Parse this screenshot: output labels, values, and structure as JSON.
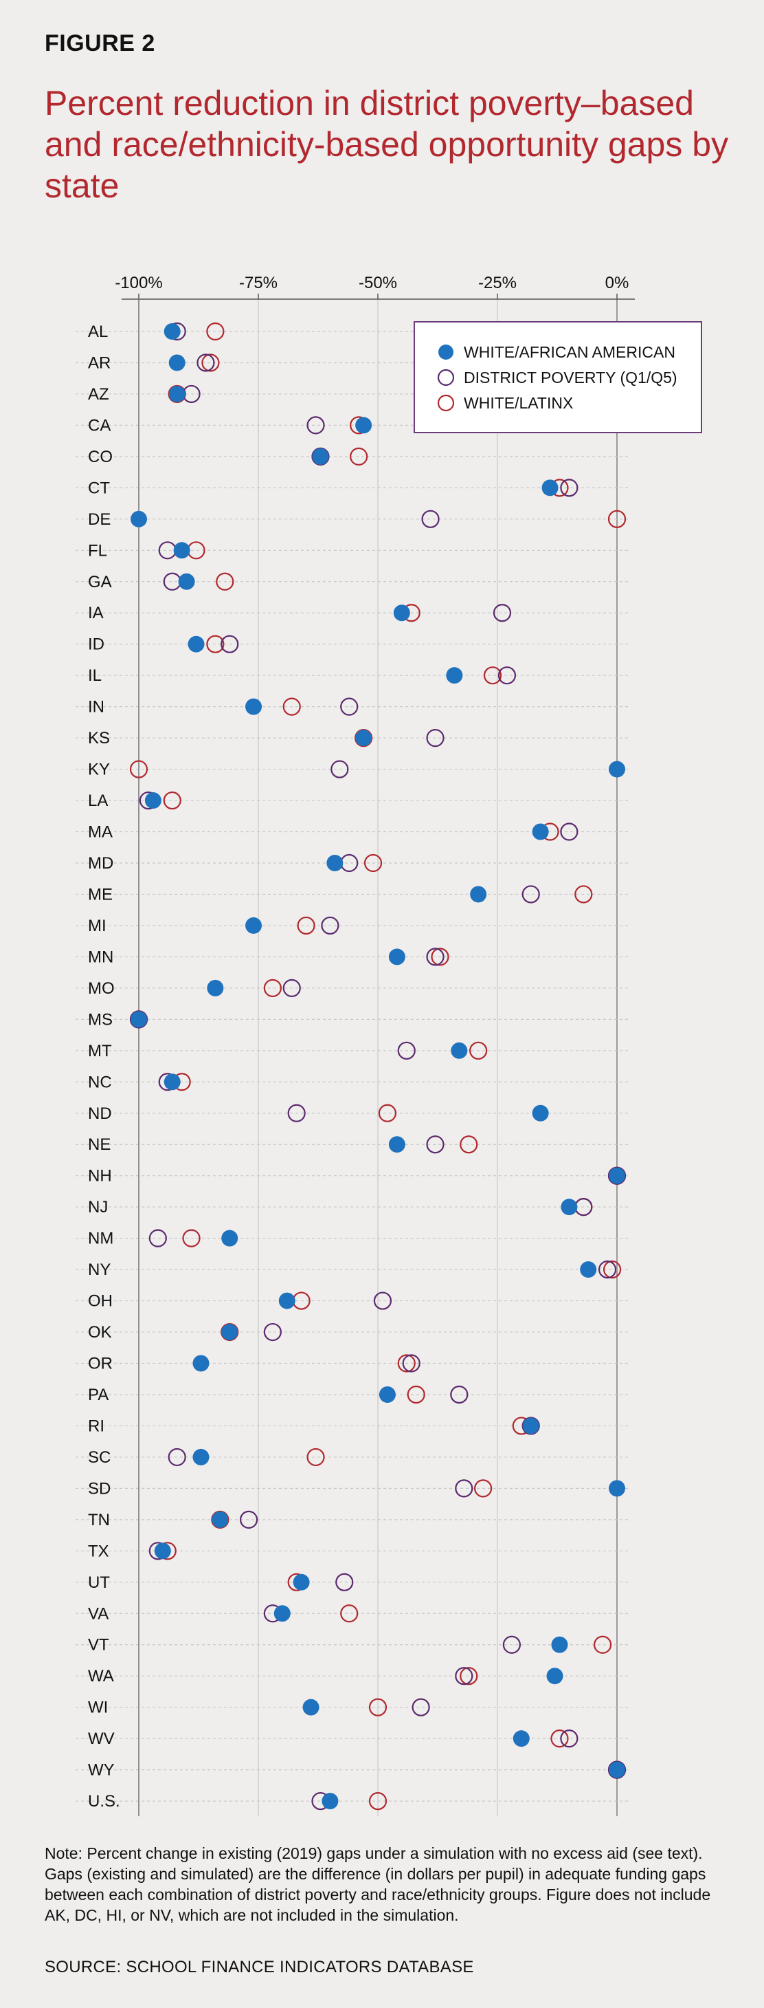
{
  "figure_label": "FIGURE 2",
  "title": "Percent reduction in district poverty–based and race/ethnicity-based opportunity gaps by state",
  "note": "Note: Percent change in existing (2019) gaps under a simulation with no excess aid (see text). Gaps (existing and simulated) are the difference (in dollars per pupil) in adequate funding gaps between each combination of district poverty and race/ethnicity groups. Figure does not include AK, DC, HI, or NV, which are not included in the simulation.",
  "source": "SOURCE: SCHOOL FINANCE INDICATORS DATABASE",
  "colors": {
    "african_american": "#1f72bd",
    "poverty": "#5b2a6e",
    "latinx": "#b2282e",
    "title": "#b2282e",
    "background": "#efeeed"
  },
  "chart_data": {
    "type": "scatter",
    "title": "Percent reduction in district poverty–based and race/ethnicity-based opportunity gaps by state",
    "xlabel": "",
    "ylabel": "",
    "xlim": [
      -100,
      0
    ],
    "x_ticks": [
      -100,
      -75,
      -50,
      -25,
      0
    ],
    "x_tick_labels": [
      "-100%",
      "-75%",
      "-50%",
      "-25%",
      "0%"
    ],
    "x_axis_position": "top",
    "grid": true,
    "legend_position": "top-right",
    "categories": [
      "AL",
      "AR",
      "AZ",
      "CA",
      "CO",
      "CT",
      "DE",
      "FL",
      "GA",
      "IA",
      "ID",
      "IL",
      "IN",
      "KS",
      "KY",
      "LA",
      "MA",
      "MD",
      "ME",
      "MI",
      "MN",
      "MO",
      "MS",
      "MT",
      "NC",
      "ND",
      "NE",
      "NH",
      "NJ",
      "NM",
      "NY",
      "OH",
      "OK",
      "OR",
      "PA",
      "RI",
      "SC",
      "SD",
      "TN",
      "TX",
      "UT",
      "VA",
      "VT",
      "WA",
      "WI",
      "WV",
      "WY",
      "U.S."
    ],
    "series": [
      {
        "name": "WHITE/AFRICAN AMERICAN",
        "marker": "filled-circle",
        "color": "#1f72bd",
        "values": [
          -93,
          -92,
          -92,
          -53,
          -62,
          -14,
          -100,
          -91,
          -90,
          -45,
          -88,
          -34,
          -76,
          -53,
          0,
          -97,
          -16,
          -59,
          -29,
          -76,
          -46,
          -84,
          -100,
          -33,
          -93,
          -16,
          -46,
          0,
          -10,
          -81,
          -6,
          -69,
          -81,
          -87,
          -48,
          -18,
          -87,
          0,
          -83,
          -95,
          -66,
          -70,
          -12,
          -13,
          -64,
          -20,
          0,
          -60
        ]
      },
      {
        "name": "DISTRICT POVERTY (Q1/Q5)",
        "marker": "hollow-circle",
        "color": "#5b2a6e",
        "values": [
          -92,
          -86,
          -89,
          -63,
          -62,
          -10,
          -39,
          -94,
          -93,
          -24,
          -81,
          -23,
          -56,
          -38,
          -58,
          -98,
          -10,
          -56,
          -18,
          -60,
          -38,
          -68,
          -100,
          -44,
          -94,
          -67,
          -38,
          0,
          -7,
          -96,
          -2,
          -49,
          -72,
          -43,
          -33,
          -18,
          -92,
          -32,
          -77,
          -96,
          -57,
          -72,
          -22,
          -32,
          -41,
          -10,
          0,
          -62
        ]
      },
      {
        "name": "WHITE/LATINX",
        "marker": "hollow-circle",
        "color": "#b2282e",
        "values": [
          -84,
          -85,
          -92,
          -54,
          -54,
          -12,
          0,
          -88,
          -82,
          -43,
          -84,
          -26,
          -68,
          -53,
          -100,
          -93,
          -14,
          -51,
          -7,
          -65,
          -37,
          -72,
          -100,
          -29,
          -91,
          -48,
          -31,
          0,
          -7,
          -89,
          -1,
          -66,
          -81,
          -44,
          -42,
          -20,
          -63,
          -28,
          -83,
          -94,
          -67,
          -56,
          -3,
          -31,
          -50,
          -12,
          0,
          -50
        ]
      }
    ]
  }
}
